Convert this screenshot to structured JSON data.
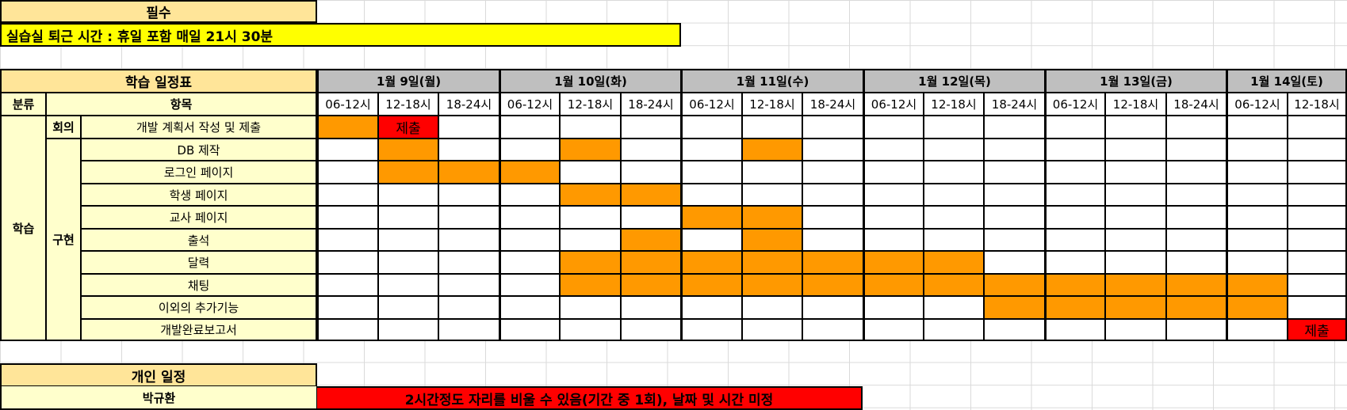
{
  "required": {
    "title": "필수",
    "notice": "실습실 퇴근 시간 : 휴일 포함 매일 21시 30분"
  },
  "schedule": {
    "title": "학습 일정표",
    "days": [
      "1월 9일(월)",
      "1월 10일(화)",
      "1월 11일(수)",
      "1월 12일(목)",
      "1월 13일(금)",
      "1월 14일(토)"
    ],
    "header_category": "분류",
    "header_item": "항목",
    "slots": [
      "06-12시",
      "12-18시",
      "18-24시",
      "06-12시",
      "12-18시",
      "18-24시",
      "06-12시",
      "12-18시",
      "18-24시",
      "06-12시",
      "12-18시",
      "18-24시",
      "06-12시",
      "12-18시",
      "18-24시",
      "06-12시",
      "12-18시"
    ],
    "category_main": "학습",
    "sub_meeting": "회의",
    "sub_impl": "구현",
    "rows": [
      {
        "label": "개발 계획서 작성 및 제출",
        "cells": [
          "o",
          "r:제출",
          "",
          "",
          "",
          "",
          "",
          "",
          "",
          "",
          "",
          "",
          "",
          "",
          "",
          "",
          ""
        ]
      },
      {
        "label": "DB 제작",
        "cells": [
          "",
          "o",
          "",
          "",
          "o",
          "",
          "",
          "o",
          "",
          "",
          "",
          "",
          "",
          "",
          "",
          "",
          ""
        ]
      },
      {
        "label": "로그인 페이지",
        "cells": [
          "",
          "o",
          "o",
          "o",
          "",
          "",
          "",
          "",
          "",
          "",
          "",
          "",
          "",
          "",
          "",
          "",
          ""
        ]
      },
      {
        "label": "학생 페이지",
        "cells": [
          "",
          "",
          "",
          "",
          "o",
          "o",
          "",
          "",
          "",
          "",
          "",
          "",
          "",
          "",
          "",
          "",
          ""
        ]
      },
      {
        "label": "교사 페이지",
        "cells": [
          "",
          "",
          "",
          "",
          "",
          "",
          "o",
          "o",
          "",
          "",
          "",
          "",
          "",
          "",
          "",
          "",
          ""
        ]
      },
      {
        "label": "출석",
        "cells": [
          "",
          "",
          "",
          "",
          "",
          "o",
          "",
          "o",
          "",
          "",
          "",
          "",
          "",
          "",
          "",
          "",
          ""
        ]
      },
      {
        "label": "달력",
        "cells": [
          "",
          "",
          "",
          "",
          "o",
          "o",
          "o",
          "o",
          "o",
          "o",
          "o",
          "",
          "",
          "",
          "",
          "",
          ""
        ]
      },
      {
        "label": "채팅",
        "cells": [
          "",
          "",
          "",
          "",
          "o",
          "o",
          "o",
          "o",
          "o",
          "o",
          "o",
          "o",
          "o",
          "o",
          "o",
          "o",
          ""
        ]
      },
      {
        "label": "이외의 추가기능",
        "cells": [
          "",
          "",
          "",
          "",
          "",
          "",
          "",
          "",
          "",
          "",
          "",
          "o",
          "o",
          "o",
          "o",
          "o",
          ""
        ]
      },
      {
        "label": "개발완료보고서",
        "cells": [
          "",
          "",
          "",
          "",
          "",
          "",
          "",
          "",
          "",
          "",
          "",
          "",
          "",
          "",
          "",
          "",
          "r:제출"
        ]
      }
    ]
  },
  "personal": {
    "title": "개인 일정",
    "name": "박규환",
    "note": "2시간정도 자리를 비울 수 있음(기간 중 1회), 날짜 및 시간 미정"
  },
  "colors": {
    "task": "#ff9900",
    "deadline": "#ff0000",
    "header_tan": "#ffe599",
    "label_cream": "#ffffcc",
    "day_gray": "#bfbfbf",
    "notice_yellow": "#ffff00"
  }
}
